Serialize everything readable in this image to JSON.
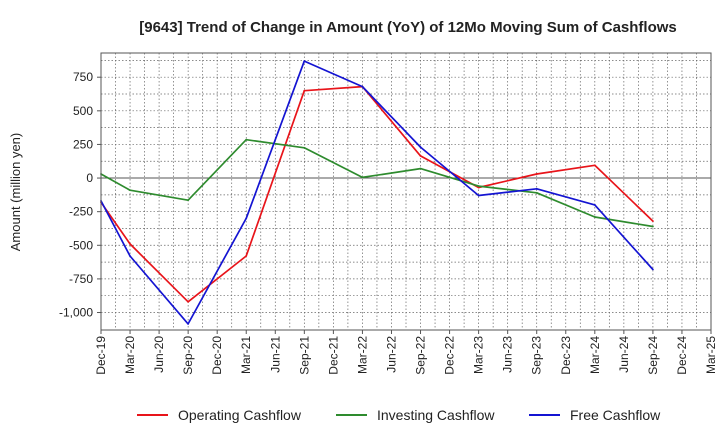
{
  "chart_data": {
    "type": "line",
    "title": "[9643]  Trend of Change in Amount (YoY) of 12Mo Moving Sum of Cashflows",
    "xlabel": "",
    "ylabel": "Amount (million yen)",
    "categories": [
      "Dec-19",
      "Mar-20",
      "Jun-20",
      "Sep-20",
      "Dec-20",
      "Mar-21",
      "Jun-21",
      "Sep-21",
      "Dec-21",
      "Mar-22",
      "Jun-22",
      "Sep-22",
      "Dec-22",
      "Mar-23",
      "Jun-23",
      "Sep-23",
      "Dec-23",
      "Mar-24",
      "Jun-24",
      "Sep-24",
      "Dec-24",
      "Mar-25"
    ],
    "yticks": [
      750,
      500,
      250,
      0,
      -250,
      -500,
      -750,
      -1000
    ],
    "ytick_labels": [
      "750",
      "500",
      "250",
      "0",
      "-250",
      "-500",
      "-750",
      "-1,000"
    ],
    "ylim": [
      -1130,
      930
    ],
    "grid": true,
    "legend_position": "bottom",
    "series": [
      {
        "name": "Operating Cashflow",
        "color": "#e8141a",
        "values": [
          -180,
          -490,
          null,
          -920,
          null,
          -580,
          null,
          650,
          null,
          680,
          null,
          165,
          null,
          -70,
          null,
          30,
          null,
          95,
          null,
          -320,
          null,
          null
        ]
      },
      {
        "name": "Investing Cashflow",
        "color": "#2e8b2e",
        "values": [
          30,
          -90,
          null,
          -165,
          null,
          285,
          null,
          225,
          null,
          5,
          null,
          70,
          null,
          -60,
          null,
          -110,
          null,
          -290,
          null,
          -360,
          null,
          null
        ]
      },
      {
        "name": "Free Cashflow",
        "color": "#1414d2",
        "values": [
          -170,
          -580,
          null,
          -1085,
          null,
          -300,
          null,
          870,
          null,
          680,
          null,
          230,
          null,
          -130,
          null,
          -80,
          null,
          -200,
          null,
          -680,
          null,
          null
        ]
      }
    ]
  }
}
